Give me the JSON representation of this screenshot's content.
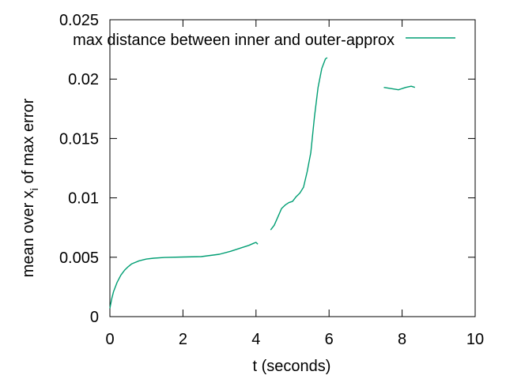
{
  "chart_data": {
    "type": "line",
    "xlabel": "t (seconds)",
    "ylabel": {
      "prefix": "mean over x",
      "subscript": "i",
      "suffix": " of max error"
    },
    "xlim": [
      0,
      10
    ],
    "ylim": [
      0,
      0.025
    ],
    "xticks": [
      0,
      2,
      4,
      6,
      8,
      10
    ],
    "xtick_labels": [
      "0",
      "2",
      "4",
      "6",
      "8",
      "10"
    ],
    "yticks": [
      0,
      0.005,
      0.01,
      0.015,
      0.02,
      0.025
    ],
    "ytick_labels": [
      "0",
      "0.005",
      "0.01",
      "0.015",
      "0.02",
      "0.025"
    ],
    "grid": false,
    "legend_position": "top-right",
    "series": [
      {
        "name": "max distance between inner and outer-approx",
        "color": "#009e73",
        "segments": [
          [
            [
              0.0,
              0.0007
            ],
            [
              0.05,
              0.0015
            ],
            [
              0.1,
              0.0021
            ],
            [
              0.2,
              0.0029
            ],
            [
              0.3,
              0.0035
            ],
            [
              0.4,
              0.0039
            ],
            [
              0.5,
              0.0042
            ],
            [
              0.6,
              0.00445
            ],
            [
              0.8,
              0.0047
            ],
            [
              1.0,
              0.00485
            ],
            [
              1.2,
              0.00492
            ],
            [
              1.5,
              0.00498
            ],
            [
              2.0,
              0.00502
            ],
            [
              2.5,
              0.00505
            ],
            [
              3.0,
              0.00525
            ],
            [
              3.3,
              0.0055
            ],
            [
              3.6,
              0.0058
            ],
            [
              3.8,
              0.006
            ],
            [
              3.95,
              0.0062
            ],
            [
              4.0,
              0.00625
            ],
            [
              4.05,
              0.0061
            ]
          ],
          [
            [
              4.4,
              0.0073
            ],
            [
              4.5,
              0.0077
            ],
            [
              4.6,
              0.0084
            ],
            [
              4.7,
              0.0091
            ],
            [
              4.8,
              0.0094
            ],
            [
              4.9,
              0.0096
            ],
            [
              5.0,
              0.0097
            ],
            [
              5.1,
              0.0101
            ],
            [
              5.2,
              0.0104
            ],
            [
              5.3,
              0.0109
            ],
            [
              5.4,
              0.0122
            ],
            [
              5.5,
              0.0138
            ],
            [
              5.6,
              0.0168
            ],
            [
              5.7,
              0.0193
            ],
            [
              5.8,
              0.0209
            ],
            [
              5.9,
              0.0217
            ],
            [
              5.95,
              0.0218
            ]
          ],
          [
            [
              7.5,
              0.0193
            ],
            [
              7.7,
              0.0192
            ],
            [
              7.9,
              0.0191
            ],
            [
              8.1,
              0.0193
            ],
            [
              8.25,
              0.0194
            ],
            [
              8.35,
              0.0193
            ]
          ]
        ]
      }
    ]
  }
}
